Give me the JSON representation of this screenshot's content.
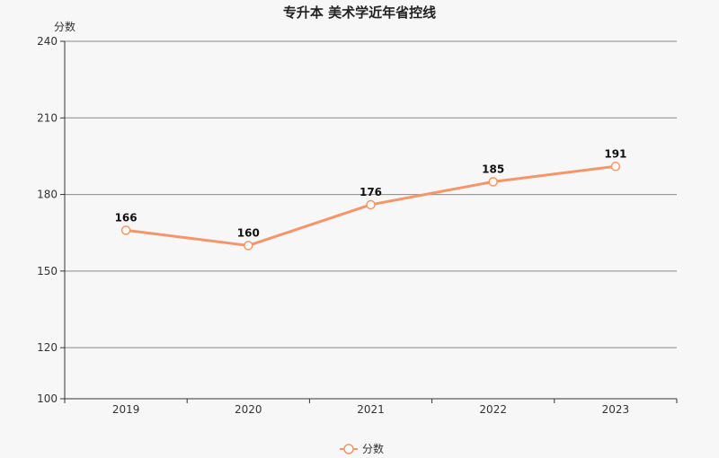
{
  "chart_data": {
    "type": "line",
    "title": "专升本 美术学近年省控线",
    "xlabel": "",
    "ylabel": "分数",
    "categories": [
      "2019",
      "2020",
      "2021",
      "2022",
      "2023"
    ],
    "series": [
      {
        "name": "分数",
        "values": [
          166,
          160,
          176,
          185,
          191
        ]
      }
    ],
    "yticks": [
      100,
      120,
      150,
      180,
      210,
      240
    ],
    "ylim": [
      100,
      240
    ],
    "grid": true,
    "legend": "bottom-center",
    "colors": {
      "line": "#f4956a",
      "marker_fill": "#ffffff",
      "axis": "#333333",
      "grid": "#888888"
    }
  }
}
